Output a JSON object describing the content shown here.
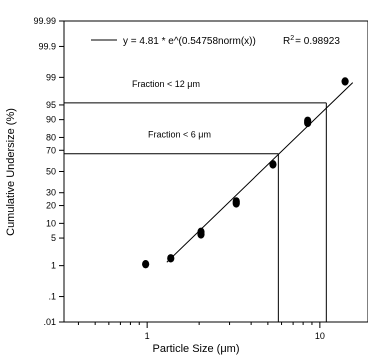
{
  "chart_data": {
    "type": "scatter",
    "xlabel": "Particle Size (μm)",
    "ylabel": "Cumulative Undersize (%)",
    "x_scale": "log",
    "y_scale": "probability",
    "xlim": [
      0.33,
      19
    ],
    "ylim": [
      0.01,
      99.99
    ],
    "x_ticks": [
      1,
      10
    ],
    "x_tick_labels": [
      "1",
      "10"
    ],
    "y_ticks": [
      0.01,
      0.1,
      1,
      5,
      10,
      20,
      30,
      50,
      70,
      80,
      90,
      95,
      99,
      99.9,
      99.99
    ],
    "y_tick_labels": [
      ".01",
      ".1",
      "1",
      "5",
      "10",
      "20",
      "30",
      "50",
      "70",
      "80",
      "90",
      "95",
      "99",
      "99.9",
      "99.99"
    ],
    "grid": false,
    "series": [
      {
        "type": "scatter",
        "x": [
          0.98,
          1.37,
          2.05,
          2.05,
          3.28,
          3.28,
          5.35,
          8.5,
          8.5,
          14.0
        ],
        "y": [
          1.1,
          1.6,
          6.0,
          6.8,
          21.5,
          23.0,
          57.0,
          88.5,
          89.5,
          98.7
        ]
      },
      {
        "type": "line",
        "x": [
          1.3,
          15.5
        ],
        "y": [
          1.25,
          98.6
        ]
      }
    ],
    "equation": {
      "formula": "y = 4.81 * e^(0.54758norm(x))",
      "r2_label": "R",
      "r2_sup": "2",
      "r2_value": "= 0.98923"
    },
    "annotations": [
      {
        "text": "Fraction < 12 μm",
        "x": 10.9,
        "y": 95.5
      },
      {
        "text": "Fraction < 6 μm",
        "x": 5.75,
        "y": 67.0
      }
    ]
  }
}
